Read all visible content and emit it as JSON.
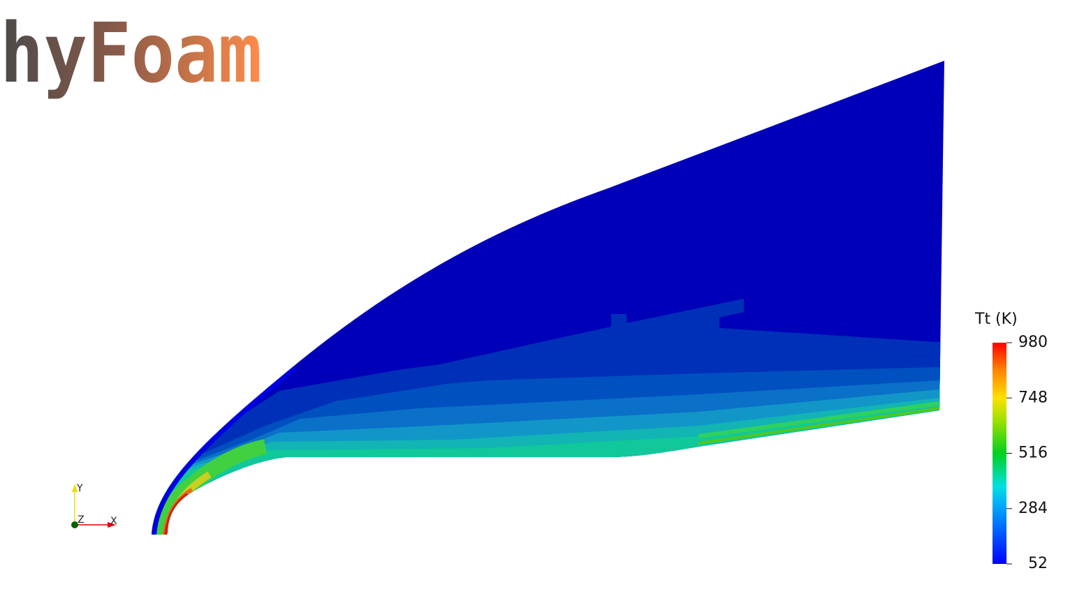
{
  "logo": {
    "text": "hyFoam"
  },
  "triad": {
    "y_label": "Y",
    "z_label": "Z",
    "x_label": "X"
  },
  "colorbar": {
    "title": "Tt (K)",
    "ticks": [
      980,
      748,
      516,
      284,
      52
    ]
  }
}
